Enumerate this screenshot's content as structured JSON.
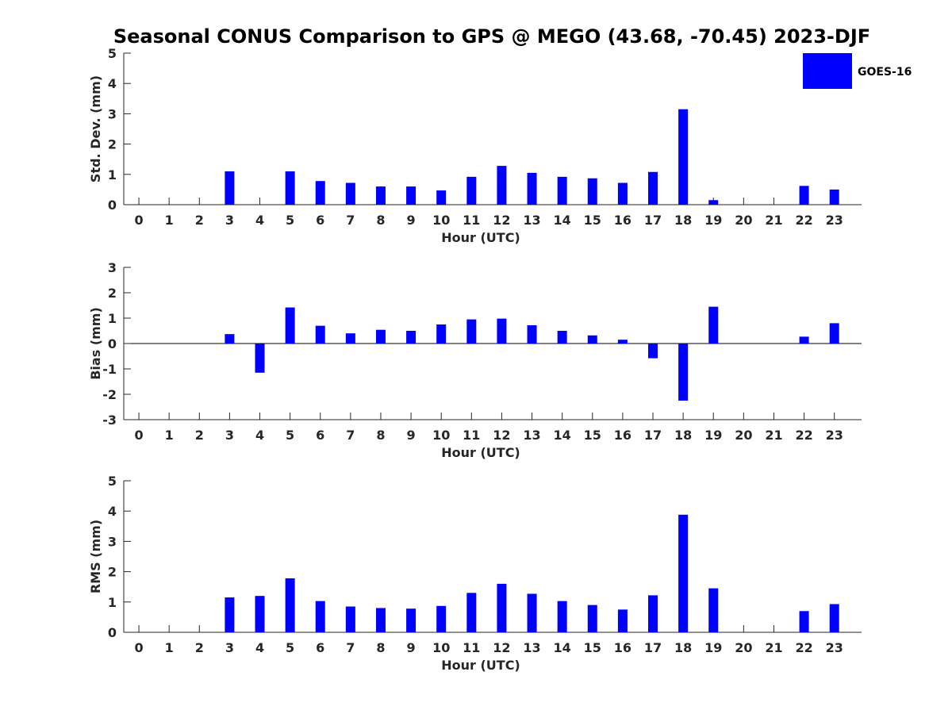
{
  "title": "Seasonal CONUS Comparison to GPS @ MEGO (43.68, -70.45) 2023-DJF",
  "legend": {
    "label": "GOES-16",
    "color": "#0000ff",
    "placement": "top-right"
  },
  "chart_data": [
    {
      "type": "bar",
      "xlabel": "Hour (UTC)",
      "ylabel": "Std. Dev. (mm)",
      "ylim": [
        0,
        5
      ],
      "yticks": [
        0,
        1,
        2,
        3,
        4,
        5
      ],
      "xlim": [
        -0.5,
        23.9
      ],
      "categories": [
        "0",
        "1",
        "2",
        "3",
        "4",
        "5",
        "6",
        "7",
        "8",
        "9",
        "10",
        "11",
        "12",
        "13",
        "14",
        "15",
        "16",
        "17",
        "18",
        "19",
        "20",
        "21",
        "22",
        "23"
      ],
      "series": [
        {
          "name": "GOES-16",
          "values": [
            null,
            null,
            null,
            1.1,
            null,
            1.1,
            0.78,
            0.72,
            0.6,
            0.6,
            0.47,
            0.92,
            1.28,
            1.05,
            0.92,
            0.87,
            0.72,
            1.08,
            3.15,
            0.15,
            null,
            null,
            0.62,
            0.5
          ]
        }
      ]
    },
    {
      "type": "bar",
      "xlabel": "Hour (UTC)",
      "ylabel": "Bias (mm)",
      "ylim": [
        -3,
        3
      ],
      "yticks": [
        -3,
        -2,
        -1,
        0,
        1,
        2,
        3
      ],
      "xlim": [
        -0.5,
        23.9
      ],
      "categories": [
        "0",
        "1",
        "2",
        "3",
        "4",
        "5",
        "6",
        "7",
        "8",
        "9",
        "10",
        "11",
        "12",
        "13",
        "14",
        "15",
        "16",
        "17",
        "18",
        "19",
        "20",
        "21",
        "22",
        "23"
      ],
      "series": [
        {
          "name": "GOES-16",
          "values": [
            null,
            null,
            null,
            0.37,
            -1.15,
            1.42,
            0.7,
            0.4,
            0.54,
            0.5,
            0.75,
            0.95,
            0.98,
            0.72,
            0.5,
            0.32,
            0.15,
            -0.58,
            -2.25,
            1.45,
            null,
            null,
            0.27,
            0.8
          ]
        }
      ]
    },
    {
      "type": "bar",
      "xlabel": "Hour (UTC)",
      "ylabel": "RMS (mm)",
      "ylim": [
        0,
        5
      ],
      "yticks": [
        0,
        1,
        2,
        3,
        4,
        5
      ],
      "xlim": [
        -0.5,
        23.9
      ],
      "categories": [
        "0",
        "1",
        "2",
        "3",
        "4",
        "5",
        "6",
        "7",
        "8",
        "9",
        "10",
        "11",
        "12",
        "13",
        "14",
        "15",
        "16",
        "17",
        "18",
        "19",
        "20",
        "21",
        "22",
        "23"
      ],
      "series": [
        {
          "name": "GOES-16",
          "values": [
            null,
            null,
            null,
            1.15,
            1.2,
            1.78,
            1.03,
            0.85,
            0.8,
            0.78,
            0.87,
            1.3,
            1.6,
            1.27,
            1.03,
            0.9,
            0.75,
            1.22,
            3.88,
            1.45,
            null,
            null,
            0.7,
            0.93
          ]
        }
      ]
    }
  ]
}
